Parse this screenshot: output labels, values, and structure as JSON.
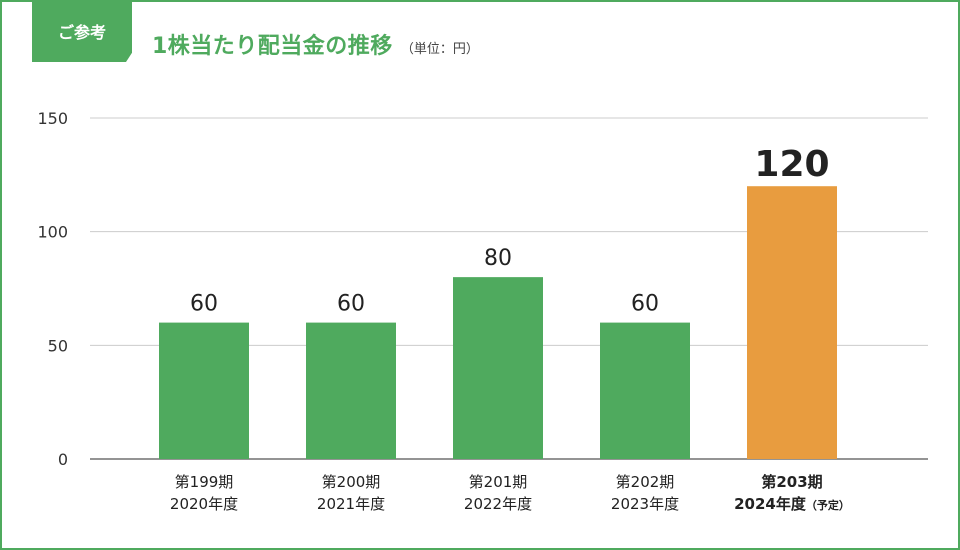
{
  "badge": "ご参考",
  "title": "1株当たり配当金の推移",
  "unit": "（単位：円）",
  "colors": {
    "green": "#4faa5e",
    "orange": "#e89c3f"
  },
  "chart_data": {
    "type": "bar",
    "title": "1株当たり配当金の推移",
    "ylabel": "",
    "ylim": [
      0,
      150
    ],
    "yticks": [
      0,
      50,
      100,
      150
    ],
    "grid": true,
    "categories": [
      {
        "line1": "第199期",
        "line2": "2020年度",
        "note": "",
        "highlight": false
      },
      {
        "line1": "第200期",
        "line2": "2021年度",
        "note": "",
        "highlight": false
      },
      {
        "line1": "第201期",
        "line2": "2022年度",
        "note": "",
        "highlight": false
      },
      {
        "line1": "第202期",
        "line2": "2023年度",
        "note": "",
        "highlight": false
      },
      {
        "line1": "第203期",
        "line2": "2024年度",
        "note": "（予定）",
        "highlight": true
      }
    ],
    "values": [
      60,
      60,
      80,
      60,
      120
    ]
  }
}
